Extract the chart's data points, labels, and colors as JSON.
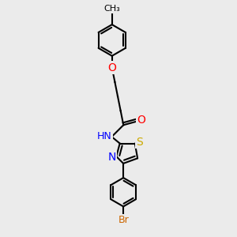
{
  "background_color": "#ebebeb",
  "bond_color": "#000000",
  "atom_colors": {
    "O": "#ff0000",
    "N": "#0000ff",
    "S": "#ccaa00",
    "Br": "#cc6600",
    "H": "#888888",
    "C": "#000000"
  },
  "line_width": 1.5,
  "font_size": 9,
  "figsize": [
    3.0,
    3.0
  ],
  "dpi": 100
}
